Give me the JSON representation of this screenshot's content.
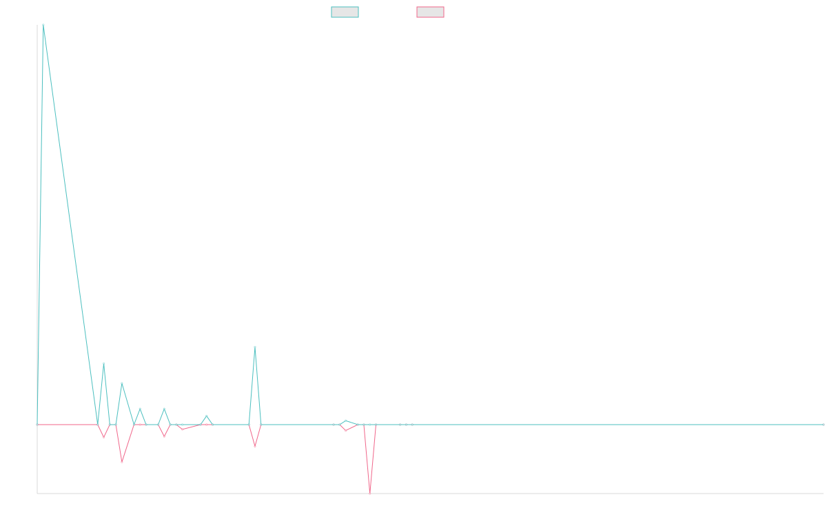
{
  "chart_data": {
    "type": "line",
    "title": "",
    "xlabel": "",
    "ylabel": "",
    "grid": false,
    "legend_placement": "top-center",
    "ylim": [
      -1.75,
      10.15
    ],
    "series": [
      {
        "color": "#4bbfbf",
        "fill": "#e6e6e6",
        "x": [
          0,
          1,
          10,
          11,
          12,
          13,
          14,
          16,
          17,
          18,
          20,
          21,
          22,
          23,
          24,
          27,
          28,
          29,
          35,
          36,
          37,
          49,
          50,
          51,
          53,
          54,
          55,
          56,
          60,
          61,
          62,
          130
        ],
        "y": [
          0,
          10.15,
          0,
          1.55,
          0,
          0,
          1.05,
          0,
          0.4,
          0,
          0,
          0.4,
          0,
          0,
          0,
          0,
          0.22,
          0,
          0,
          1.97,
          0,
          0,
          0,
          0.1,
          0,
          0,
          0,
          0,
          0,
          0,
          0,
          0
        ]
      },
      {
        "color": "#f0668a",
        "fill": "#e6e6e6",
        "x": [
          0,
          10,
          11,
          12,
          13,
          14,
          16,
          17,
          18,
          20,
          21,
          22,
          23,
          24,
          27,
          28,
          29,
          35,
          36,
          37,
          49,
          50,
          51,
          53,
          54,
          55,
          56,
          60,
          61,
          62,
          130
        ],
        "y": [
          0,
          0,
          -0.32,
          0,
          0,
          -0.95,
          0,
          0,
          0,
          0,
          -0.3,
          0,
          0,
          -0.12,
          0,
          0,
          0,
          0,
          -0.55,
          0,
          0,
          0,
          -0.15,
          0,
          0,
          -1.75,
          0,
          0,
          0,
          0,
          0
        ]
      }
    ]
  }
}
